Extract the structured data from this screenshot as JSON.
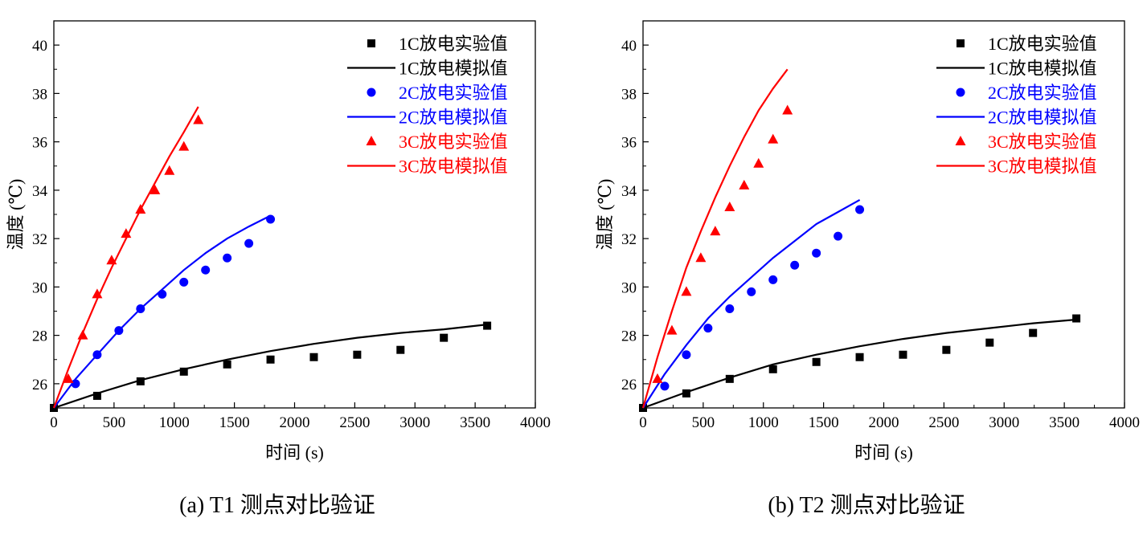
{
  "chart_data": [
    {
      "type": "scatter",
      "caption": "(a) T1 测点对比验证",
      "xlabel": "时间 (s)",
      "ylabel": "温度 (℃)",
      "xlim": [
        0,
        4000
      ],
      "ylim": [
        25,
        41
      ],
      "xticks": [
        0,
        500,
        1000,
        1500,
        2000,
        2500,
        3000,
        3500,
        4000
      ],
      "yticks": [
        26,
        28,
        30,
        32,
        34,
        36,
        38,
        40
      ],
      "grid": false,
      "legend_position": "top-right",
      "series": [
        {
          "name": "1C放电实验值",
          "kind": "marker",
          "marker": "square",
          "color": "#000000",
          "x": [
            0,
            360,
            720,
            1080,
            1440,
            1800,
            2160,
            2520,
            2880,
            3240,
            3600
          ],
          "y": [
            25.0,
            25.5,
            26.1,
            26.5,
            26.8,
            27.0,
            27.1,
            27.2,
            27.4,
            27.9,
            28.4
          ]
        },
        {
          "name": "1C放电模拟值",
          "kind": "line",
          "color": "#000000",
          "x": [
            0,
            360,
            720,
            1080,
            1440,
            1800,
            2160,
            2520,
            2880,
            3240,
            3600
          ],
          "y": [
            25.0,
            25.6,
            26.15,
            26.6,
            27.0,
            27.35,
            27.65,
            27.9,
            28.1,
            28.25,
            28.45
          ]
        },
        {
          "name": "2C放电实验值",
          "kind": "marker",
          "marker": "circle",
          "color": "#0000ff",
          "x": [
            180,
            360,
            540,
            720,
            900,
            1080,
            1260,
            1440,
            1620,
            1800
          ],
          "y": [
            26.0,
            27.2,
            28.2,
            29.1,
            29.7,
            30.2,
            30.7,
            31.2,
            31.8,
            32.8
          ]
        },
        {
          "name": "2C放电模拟值",
          "kind": "line",
          "color": "#0000ff",
          "x": [
            0,
            180,
            360,
            540,
            720,
            900,
            1080,
            1260,
            1440,
            1620,
            1800
          ],
          "y": [
            25.0,
            26.2,
            27.2,
            28.2,
            29.1,
            29.9,
            30.7,
            31.4,
            32.0,
            32.5,
            32.95
          ]
        },
        {
          "name": "3C放电实验值",
          "kind": "marker",
          "marker": "triangle",
          "color": "#ff0000",
          "x": [
            120,
            240,
            360,
            480,
            600,
            720,
            840,
            960,
            1080,
            1200
          ],
          "y": [
            26.2,
            28.0,
            29.7,
            31.1,
            32.2,
            33.2,
            34.0,
            34.8,
            35.8,
            36.9
          ]
        },
        {
          "name": "3C放电模拟值",
          "kind": "line",
          "color": "#ff0000",
          "x": [
            0,
            120,
            240,
            360,
            480,
            600,
            720,
            840,
            960,
            1080,
            1200
          ],
          "y": [
            25.0,
            26.6,
            28.1,
            29.5,
            30.8,
            32.0,
            33.2,
            34.3,
            35.4,
            36.4,
            37.45
          ]
        }
      ]
    },
    {
      "type": "scatter",
      "caption": "(b) T2 测点对比验证",
      "xlabel": "时间 (s)",
      "ylabel": "温度 (℃)",
      "xlim": [
        0,
        4000
      ],
      "ylim": [
        25,
        41
      ],
      "xticks": [
        0,
        500,
        1000,
        1500,
        2000,
        2500,
        3000,
        3500,
        4000
      ],
      "yticks": [
        26,
        28,
        30,
        32,
        34,
        36,
        38,
        40
      ],
      "grid": false,
      "legend_position": "top-right",
      "series": [
        {
          "name": "1C放电实验值",
          "kind": "marker",
          "marker": "square",
          "color": "#000000",
          "x": [
            0,
            360,
            720,
            1080,
            1440,
            1800,
            2160,
            2520,
            2880,
            3240,
            3600
          ],
          "y": [
            25.0,
            25.6,
            26.2,
            26.6,
            26.9,
            27.1,
            27.2,
            27.4,
            27.7,
            28.1,
            28.7
          ]
        },
        {
          "name": "1C放电模拟值",
          "kind": "line",
          "color": "#000000",
          "x": [
            0,
            360,
            720,
            1080,
            1440,
            1800,
            2160,
            2520,
            2880,
            3240,
            3600
          ],
          "y": [
            25.0,
            25.65,
            26.25,
            26.8,
            27.2,
            27.55,
            27.85,
            28.1,
            28.3,
            28.5,
            28.65
          ]
        },
        {
          "name": "2C放电实验值",
          "kind": "marker",
          "marker": "circle",
          "color": "#0000ff",
          "x": [
            180,
            360,
            540,
            720,
            900,
            1080,
            1260,
            1440,
            1620,
            1800
          ],
          "y": [
            25.9,
            27.2,
            28.3,
            29.1,
            29.8,
            30.3,
            30.9,
            31.4,
            32.1,
            33.2
          ]
        },
        {
          "name": "2C放电模拟值",
          "kind": "line",
          "color": "#0000ff",
          "x": [
            0,
            180,
            360,
            540,
            720,
            900,
            1080,
            1260,
            1440,
            1620,
            1800
          ],
          "y": [
            25.0,
            26.4,
            27.6,
            28.7,
            29.6,
            30.4,
            31.2,
            31.9,
            32.6,
            33.1,
            33.6
          ]
        },
        {
          "name": "3C放电实验值",
          "kind": "marker",
          "marker": "triangle",
          "color": "#ff0000",
          "x": [
            120,
            240,
            360,
            480,
            600,
            720,
            840,
            960,
            1080,
            1200
          ],
          "y": [
            26.2,
            28.2,
            29.8,
            31.2,
            32.3,
            33.3,
            34.2,
            35.1,
            36.1,
            37.3
          ]
        },
        {
          "name": "3C放电模拟值",
          "kind": "line",
          "color": "#ff0000",
          "x": [
            0,
            120,
            240,
            360,
            480,
            600,
            720,
            840,
            960,
            1080,
            1200
          ],
          "y": [
            25.0,
            27.1,
            29.0,
            30.8,
            32.3,
            33.7,
            35.0,
            36.2,
            37.3,
            38.2,
            39.0
          ]
        }
      ]
    }
  ]
}
